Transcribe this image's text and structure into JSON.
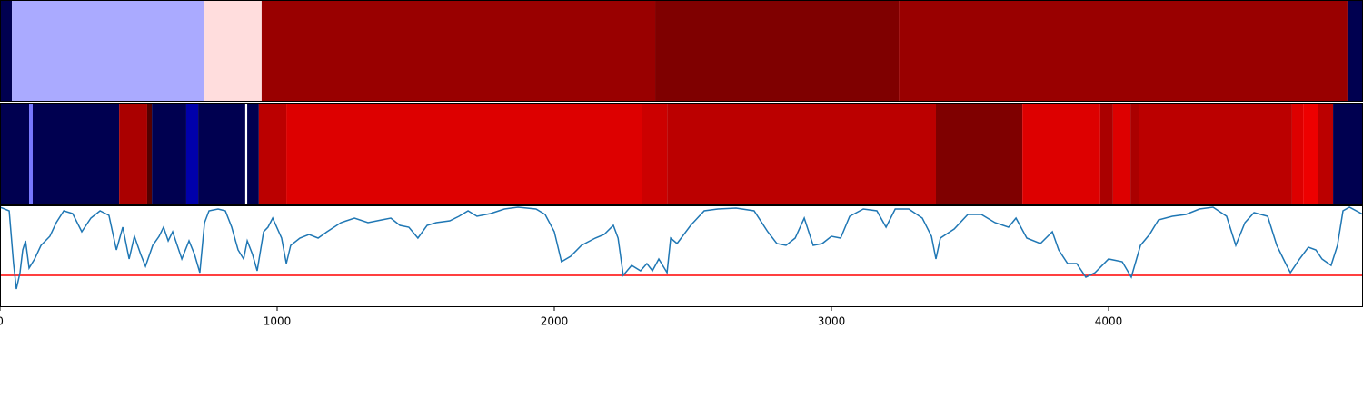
{
  "chart_data": [
    {
      "type": "segments",
      "xlim": [
        0,
        4918
      ],
      "segments": [
        {
          "start": 0,
          "end": 43,
          "color": "#000050"
        },
        {
          "start": 43,
          "end": 738,
          "color": "#aaaaff"
        },
        {
          "start": 738,
          "end": 944,
          "color": "#ffdddd"
        },
        {
          "start": 944,
          "end": 2364,
          "color": "#990000"
        },
        {
          "start": 2364,
          "end": 3243,
          "color": "#7f0000"
        },
        {
          "start": 3243,
          "end": 4862,
          "color": "#990000"
        },
        {
          "start": 4862,
          "end": 4918,
          "color": "#000050"
        }
      ]
    },
    {
      "type": "segments",
      "xlim": [
        0,
        4918
      ],
      "segments": [
        {
          "start": 0,
          "end": 105,
          "color": "#000050"
        },
        {
          "start": 105,
          "end": 118,
          "color": "#7777ff"
        },
        {
          "start": 118,
          "end": 430,
          "color": "#000050"
        },
        {
          "start": 430,
          "end": 531,
          "color": "#aa0000"
        },
        {
          "start": 531,
          "end": 548,
          "color": "#550000"
        },
        {
          "start": 548,
          "end": 672,
          "color": "#000050"
        },
        {
          "start": 672,
          "end": 715,
          "color": "#0000aa"
        },
        {
          "start": 715,
          "end": 885,
          "color": "#000050"
        },
        {
          "start": 885,
          "end": 892,
          "color": "#ffffff"
        },
        {
          "start": 892,
          "end": 934,
          "color": "#000050"
        },
        {
          "start": 934,
          "end": 1033,
          "color": "#bb0000"
        },
        {
          "start": 1033,
          "end": 2318,
          "color": "#dd0000"
        },
        {
          "start": 2318,
          "end": 2407,
          "color": "#cc0000"
        },
        {
          "start": 2407,
          "end": 3377,
          "color": "#bb0000"
        },
        {
          "start": 3377,
          "end": 3689,
          "color": "#7f0000"
        },
        {
          "start": 3689,
          "end": 3970,
          "color": "#dd0000"
        },
        {
          "start": 3970,
          "end": 4016,
          "color": "#aa0000"
        },
        {
          "start": 4016,
          "end": 4079,
          "color": "#dd0000"
        },
        {
          "start": 4079,
          "end": 4111,
          "color": "#aa0000"
        },
        {
          "start": 4111,
          "end": 4662,
          "color": "#bb0000"
        },
        {
          "start": 4662,
          "end": 4702,
          "color": "#dd0000"
        },
        {
          "start": 4702,
          "end": 4757,
          "color": "#ee0000"
        },
        {
          "start": 4757,
          "end": 4810,
          "color": "#bb0000"
        },
        {
          "start": 4810,
          "end": 4918,
          "color": "#000050"
        }
      ]
    },
    {
      "type": "line",
      "xlim": [
        0,
        4918
      ],
      "ylim": [
        0,
        112
      ],
      "xticks": [
        0,
        1000,
        2000,
        3000,
        4000
      ],
      "color": "#1f77b4",
      "threshold": 35,
      "threshold_color": "#ff0000",
      "x": [
        0,
        33,
        49,
        59,
        72,
        82,
        92,
        105,
        125,
        148,
        180,
        203,
        230,
        262,
        295,
        328,
        361,
        393,
        420,
        443,
        466,
        485,
        508,
        525,
        551,
        574,
        590,
        607,
        623,
        656,
        682,
        702,
        721,
        738,
        754,
        787,
        813,
        836,
        859,
        879,
        892,
        911,
        928,
        951,
        967,
        984,
        1016,
        1033,
        1049,
        1082,
        1115,
        1148,
        1180,
        1230,
        1279,
        1328,
        1377,
        1410,
        1443,
        1475,
        1508,
        1541,
        1574,
        1623,
        1656,
        1689,
        1721,
        1770,
        1820,
        1869,
        1934,
        1967,
        2000,
        2026,
        2059,
        2098,
        2148,
        2180,
        2213,
        2230,
        2249,
        2279,
        2311,
        2334,
        2354,
        2377,
        2407,
        2420,
        2443,
        2492,
        2541,
        2590,
        2656,
        2721,
        2770,
        2803,
        2836,
        2869,
        2902,
        2934,
        2967,
        3000,
        3033,
        3066,
        3115,
        3164,
        3197,
        3230,
        3279,
        3328,
        3361,
        3377,
        3393,
        3443,
        3492,
        3541,
        3590,
        3639,
        3666,
        3705,
        3754,
        3797,
        3820,
        3852,
        3885,
        3918,
        3951,
        4000,
        4049,
        4082,
        4115,
        4148,
        4180,
        4230,
        4279,
        4328,
        4377,
        4426,
        4459,
        4492,
        4525,
        4574,
        4607,
        4639,
        4656,
        4689,
        4721,
        4748,
        4770,
        4803,
        4826,
        4846,
        4869,
        4918
      ],
      "values": [
        110,
        106,
        48,
        20,
        38,
        63,
        73,
        43,
        53,
        68,
        78,
        93,
        106,
        103,
        83,
        98,
        106,
        101,
        63,
        88,
        53,
        78,
        58,
        45,
        68,
        78,
        88,
        73,
        83,
        53,
        73,
        58,
        38,
        93,
        106,
        108,
        106,
        88,
        63,
        53,
        73,
        58,
        40,
        83,
        88,
        98,
        76,
        48,
        68,
        76,
        80,
        76,
        83,
        93,
        98,
        93,
        96,
        98,
        90,
        88,
        76,
        90,
        93,
        95,
        100,
        106,
        100,
        103,
        108,
        110,
        108,
        102,
        83,
        50,
        56,
        68,
        76,
        80,
        90,
        76,
        35,
        46,
        40,
        48,
        40,
        53,
        38,
        76,
        70,
        90,
        106,
        108,
        109,
        106,
        83,
        70,
        68,
        76,
        98,
        68,
        70,
        78,
        76,
        100,
        108,
        106,
        88,
        108,
        108,
        98,
        78,
        53,
        76,
        86,
        102,
        102,
        93,
        88,
        98,
        76,
        70,
        83,
        63,
        48,
        48,
        33,
        38,
        53,
        50,
        33,
        68,
        80,
        96,
        100,
        102,
        108,
        110,
        100,
        68,
        93,
        104,
        100,
        68,
        48,
        38,
        53,
        66,
        63,
        53,
        46,
        68,
        106,
        110,
        102
      ]
    }
  ]
}
